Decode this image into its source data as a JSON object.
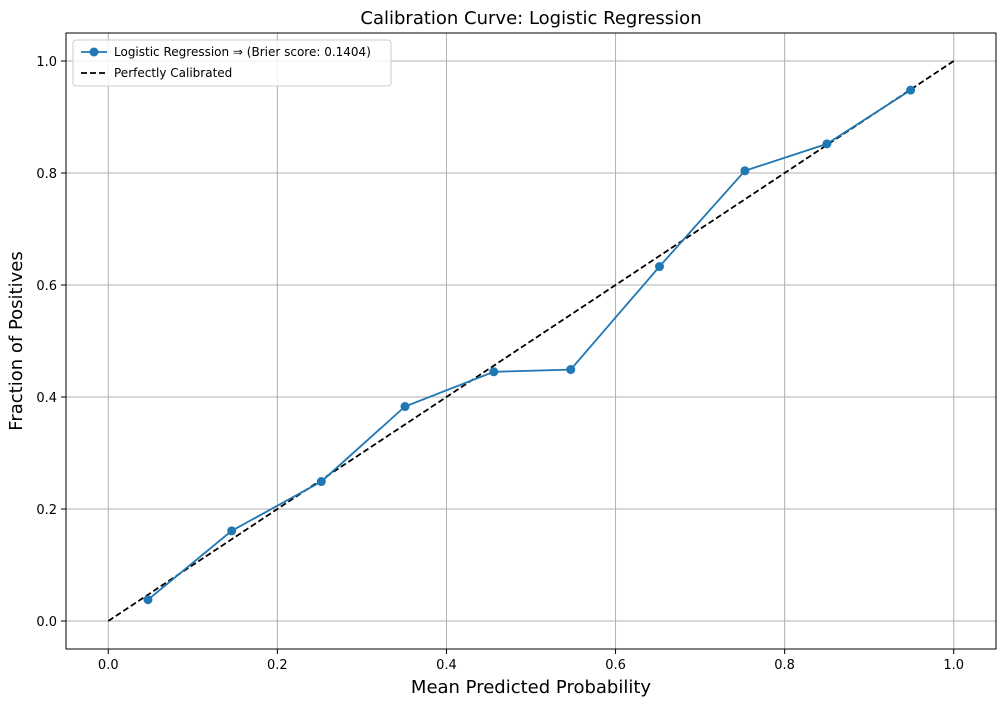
{
  "chart_data": {
    "type": "line",
    "title": "Calibration Curve: Logistic Regression",
    "xlabel": "Mean Predicted Probability",
    "ylabel": "Fraction of Positives",
    "xlim": [
      -0.05,
      1.05
    ],
    "ylim": [
      -0.05,
      1.05
    ],
    "xticks": [
      0.0,
      0.2,
      0.4,
      0.6,
      0.8,
      1.0
    ],
    "xtick_labels": [
      "0.0",
      "0.2",
      "0.4",
      "0.6",
      "0.8",
      "1.0"
    ],
    "yticks": [
      0.0,
      0.2,
      0.4,
      0.6,
      0.8,
      1.0
    ],
    "ytick_labels": [
      "0.0",
      "0.2",
      "0.4",
      "0.6",
      "0.8",
      "1.0"
    ],
    "grid": true,
    "legend_position": "top-left",
    "series": [
      {
        "name": "Logistic Regression ⇒ (Brier score: 0.1404)",
        "color": "#1f77b4",
        "style": "solid",
        "marker": "circle",
        "x": [
          0.047,
          0.146,
          0.252,
          0.351,
          0.456,
          0.547,
          0.652,
          0.753,
          0.85,
          0.949
        ],
        "y": [
          0.038,
          0.161,
          0.249,
          0.383,
          0.445,
          0.449,
          0.633,
          0.804,
          0.852,
          0.948
        ]
      },
      {
        "name": "Perfectly Calibrated",
        "color": "#000000",
        "style": "dashed",
        "marker": "none",
        "x": [
          0.0,
          1.0
        ],
        "y": [
          0.0,
          1.0
        ]
      }
    ]
  }
}
